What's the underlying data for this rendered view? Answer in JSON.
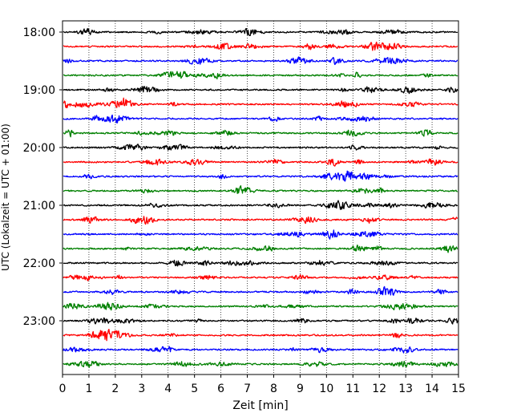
{
  "chart_data": {
    "type": "line",
    "title": "",
    "xlabel": "Zeit  [min]",
    "ylabel": "UTC (Lokalzeit = UTC + 01:00)",
    "xlim": [
      0,
      15
    ],
    "x_ticks": [
      0,
      1,
      2,
      3,
      4,
      5,
      6,
      7,
      8,
      9,
      10,
      11,
      12,
      13,
      14,
      15
    ],
    "x_tick_labels": [
      "0",
      "1",
      "2",
      "3",
      "4",
      "5",
      "6",
      "7",
      "8",
      "9",
      "10",
      "11",
      "12",
      "13",
      "14",
      "15"
    ],
    "y_tick_labels": [
      "18:00",
      "19:00",
      "20:00",
      "21:00",
      "22:00",
      "23:00"
    ],
    "row_count": 24,
    "rows_per_hour": 4,
    "row_interval_min": 15,
    "start_time": "18:00",
    "grid": "x",
    "color_cycle": [
      "#000000",
      "#ff0000",
      "#0000ff",
      "#008000"
    ]
  }
}
